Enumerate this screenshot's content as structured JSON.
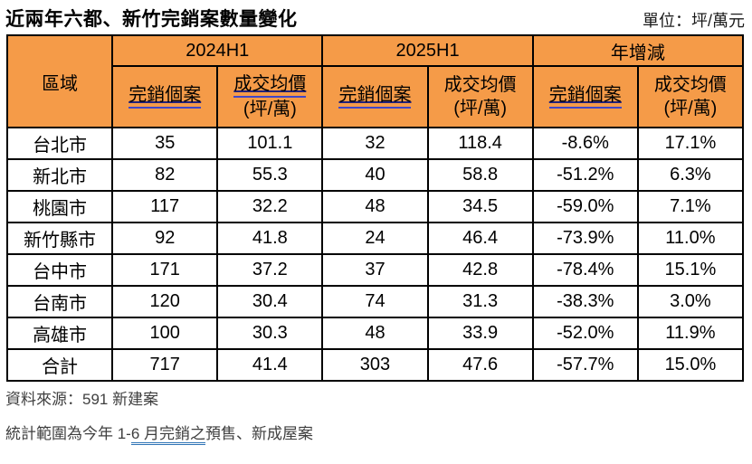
{
  "header": {
    "title": "近兩年六都、新竹完銷案數量變化",
    "unit_label": "單位：坪/萬元"
  },
  "colors": {
    "header_bg": "#F59B48",
    "grid_border": "#000000",
    "double_underline_top": "#23237A",
    "double_underline_bottom": "#4147C8",
    "footnote_underline": "#2E74B5",
    "footnote_text": "#3F3F3F"
  },
  "chart_data": {
    "type": "table",
    "title": "近兩年六都、新竹完銷案數量變化",
    "unit": "坪/萬元",
    "region_header": "區域",
    "groups": [
      {
        "label": "2024H1",
        "case_label": "完銷個案",
        "price_label": "成交均價",
        "price_unit": "(坪/萬)"
      },
      {
        "label": "2025H1",
        "case_label": "完銷個案",
        "price_label": "成交均價",
        "price_unit": "(坪/萬)"
      },
      {
        "label": "年增減",
        "case_label": "完銷個案",
        "price_label": "成交均價",
        "price_unit": "(坪/萬)"
      }
    ],
    "columns": [
      "區域",
      "2024H1 完銷個案",
      "2024H1 成交均價(坪/萬)",
      "2025H1 完銷個案",
      "2025H1 成交均價(坪/萬)",
      "年增減 完銷個案",
      "年增減 成交均價(坪/萬)"
    ],
    "rows": [
      {
        "region": "台北市",
        "values": [
          "35",
          "101.1",
          "32",
          "118.4",
          "-8.6%",
          "17.1%"
        ]
      },
      {
        "region": "新北市",
        "values": [
          "82",
          "55.3",
          "40",
          "58.8",
          "-51.2%",
          "6.3%"
        ]
      },
      {
        "region": "桃園市",
        "values": [
          "117",
          "32.2",
          "48",
          "34.5",
          "-59.0%",
          "7.1%"
        ]
      },
      {
        "region": "新竹縣市",
        "values": [
          "92",
          "41.8",
          "24",
          "46.4",
          "-73.9%",
          "11.0%"
        ]
      },
      {
        "region": "台中市",
        "values": [
          "171",
          "37.2",
          "37",
          "42.8",
          "-78.4%",
          "15.1%"
        ]
      },
      {
        "region": "台南市",
        "values": [
          "120",
          "30.4",
          "74",
          "31.3",
          "-38.3%",
          "3.0%"
        ]
      },
      {
        "region": "高雄市",
        "values": [
          "100",
          "30.3",
          "48",
          "33.9",
          "-52.0%",
          "11.9%"
        ]
      },
      {
        "region": "合計",
        "values": [
          "717",
          "41.4",
          "303",
          "47.6",
          "-57.7%",
          "15.0%"
        ]
      }
    ]
  },
  "footnotes": {
    "source": "資料來源：591 新建案",
    "scope_prefix": "統計範圍為今年 1-",
    "scope_underlined": "6 月完銷之",
    "scope_suffix": "預售、新成屋案"
  }
}
